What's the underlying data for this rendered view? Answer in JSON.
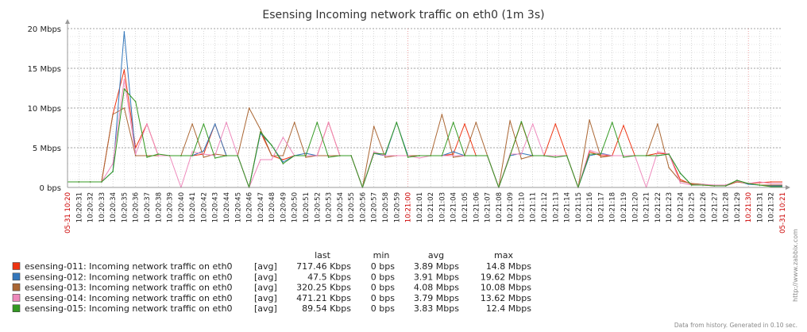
{
  "chart_data": {
    "type": "line",
    "title": "Esensing Incoming network traffic on eth0 (1m 3s)",
    "y_unit": "Mbps",
    "ylim": [
      0,
      20
    ],
    "yticks": [
      "0 bps",
      "5 Mbps",
      "10 Mbps",
      "15 Mbps",
      "20 Mbps"
    ],
    "x": [
      "10:20:31",
      "10:20:32",
      "10:20:33",
      "10:20:34",
      "10:20:35",
      "10:20:36",
      "10:20:37",
      "10:20:38",
      "10:20:39",
      "10:20:40",
      "10:20:41",
      "10:20:42",
      "10:20:43",
      "10:20:44",
      "10:20:45",
      "10:20:46",
      "10:20:47",
      "10:20:48",
      "10:20:49",
      "10:20:50",
      "10:20:51",
      "10:20:52",
      "10:20:53",
      "10:20:54",
      "10:20:55",
      "10:20:56",
      "10:20:57",
      "10:20:58",
      "10:20:59",
      "10:21:00",
      "10:21:01",
      "10:21:02",
      "10:21:03",
      "10:21:04",
      "10:21:05",
      "10:21:06",
      "10:21:07",
      "10:21:08",
      "10:21:09",
      "10:21:10",
      "10:21:11",
      "10:21:12",
      "10:21:13",
      "10:21:14",
      "10:21:15",
      "10:21:16",
      "10:21:17",
      "10:21:18",
      "10:21:19",
      "10:21:20",
      "10:21:21",
      "10:21:22",
      "10:21:23",
      "10:21:24",
      "10:21:25",
      "10:21:26",
      "10:21:27",
      "10:21:28",
      "10:21:29",
      "10:21:30",
      "10:21:31",
      "10:21:32"
    ],
    "x_start_label": "05-31 10:20",
    "x_end_label": "05-31 10:21",
    "x_highlight_labels": [
      "10:21:00",
      "10:21:30"
    ],
    "series": [
      {
        "name": "esensing-011: Incoming network traffic on eth0",
        "color": "#ee3311",
        "agg": "[avg]",
        "last": "717.46 Kbps",
        "min": "0 bps",
        "avg": "3.89 Mbps",
        "max": "14.8 Mbps",
        "values": [
          0.7,
          0.7,
          0.7,
          9.2,
          14.8,
          5,
          8,
          4,
          4,
          4,
          4,
          4.2,
          8,
          4,
          4,
          0,
          7,
          4,
          3.5,
          4,
          4,
          4,
          8.2,
          4,
          4,
          0,
          4.3,
          4,
          4,
          4,
          4,
          4,
          4,
          4.2,
          8,
          4,
          4,
          0,
          4,
          8.2,
          4,
          4,
          8,
          4,
          0,
          4.5,
          4,
          4,
          7.8,
          4,
          4,
          4.3,
          4.2,
          1,
          0.4,
          0.3,
          0.2,
          0.2,
          0.7,
          0.5,
          0.6,
          0.7
        ]
      },
      {
        "name": "esensing-012: Incoming network traffic on eth0",
        "color": "#3377bb",
        "agg": "[avg]",
        "last": "47.5 Kbps",
        "min": "0 bps",
        "avg": "3.91 Mbps",
        "max": "19.62 Mbps",
        "values": [
          0.7,
          0.7,
          0.7,
          2,
          19.6,
          4,
          4,
          4,
          4,
          4,
          4,
          4.6,
          8,
          4,
          4,
          0,
          6.8,
          5.3,
          3.2,
          4,
          4.3,
          4,
          4,
          4,
          4,
          0,
          4.3,
          4,
          8.2,
          4,
          4,
          4,
          4,
          4.5,
          4,
          4,
          4,
          0,
          4,
          4.3,
          4,
          4,
          4,
          4,
          0,
          4,
          4.3,
          4,
          4,
          4,
          4,
          4,
          4.2,
          1.8,
          0.3,
          0.4,
          0.2,
          0.2,
          0.8,
          0.4,
          0.3,
          0.2
        ]
      },
      {
        "name": "esensing-013: Incoming network traffic on eth0",
        "color": "#aa6633",
        "agg": "[avg]",
        "last": "320.25 Kbps",
        "min": "0 bps",
        "avg": "4.08 Mbps",
        "max": "10.08 Mbps",
        "values": [
          0.7,
          0.7,
          0.7,
          9.2,
          10,
          4,
          4,
          4,
          4,
          4,
          8,
          3.8,
          4.2,
          4,
          4,
          10,
          7.3,
          4,
          4,
          8.2,
          3.8,
          4,
          4,
          4,
          4,
          0,
          7.7,
          3.8,
          4,
          4,
          4,
          4,
          9.2,
          3.8,
          4,
          8.2,
          4,
          0,
          8.4,
          3.6,
          4,
          4,
          4,
          4,
          0,
          8.5,
          3.8,
          4,
          4,
          4,
          4,
          8,
          2.5,
          0.8,
          0.5,
          0.4,
          0.2,
          0.3,
          0.7,
          0.5,
          0.3,
          0.3
        ]
      },
      {
        "name": "esensing-014: Incoming network traffic on eth0",
        "color": "#ee88bb",
        "agg": "[avg]",
        "last": "471.21 Kbps",
        "min": "0 bps",
        "avg": "3.79 Mbps",
        "max": "13.62 Mbps",
        "values": [
          0.7,
          0.7,
          0.7,
          3,
          13.6,
          4.2,
          8,
          4,
          4,
          0,
          4.5,
          4.2,
          4,
          8.2,
          4,
          0,
          3.5,
          3.5,
          6.3,
          4,
          4,
          4,
          8.2,
          4,
          4,
          0,
          4.5,
          4,
          4,
          4,
          3.7,
          4,
          4,
          4,
          4,
          4,
          4,
          0,
          4.2,
          4.2,
          8,
          4,
          4,
          4,
          0,
          4.7,
          4.2,
          4,
          4,
          4,
          0,
          4.5,
          4.2,
          0.6,
          0.3,
          0.4,
          0.3,
          0.3,
          0.8,
          0.5,
          0.7,
          0.5
        ]
      },
      {
        "name": "esensing-015: Incoming network traffic on eth0",
        "color": "#339922",
        "agg": "[avg]",
        "last": "89.54 Kbps",
        "min": "0 bps",
        "avg": "3.83 Mbps",
        "max": "12.4 Mbps",
        "values": [
          0.7,
          0.7,
          0.7,
          2,
          12.4,
          10.8,
          3.8,
          4.2,
          4,
          4,
          4,
          8,
          3.7,
          4,
          4,
          0,
          7,
          5.3,
          3,
          4,
          4,
          8.2,
          3.8,
          4,
          4,
          0,
          4.3,
          4.2,
          8.2,
          3.8,
          4,
          4,
          4,
          8.2,
          4,
          4,
          4,
          0,
          4,
          8.3,
          4,
          4,
          3.8,
          4,
          0,
          4.2,
          4.2,
          8.2,
          3.8,
          4,
          4,
          4,
          4.2,
          1.8,
          0.3,
          0.3,
          0.2,
          0.2,
          0.9,
          0.5,
          0.3,
          0.1
        ]
      }
    ]
  },
  "legend_headers": {
    "last": "last",
    "min": "min",
    "avg": "avg",
    "max": "max"
  },
  "footer": "Data from history. Generated in 0.10 sec.",
  "watermark": "http://www.zabbix.com"
}
